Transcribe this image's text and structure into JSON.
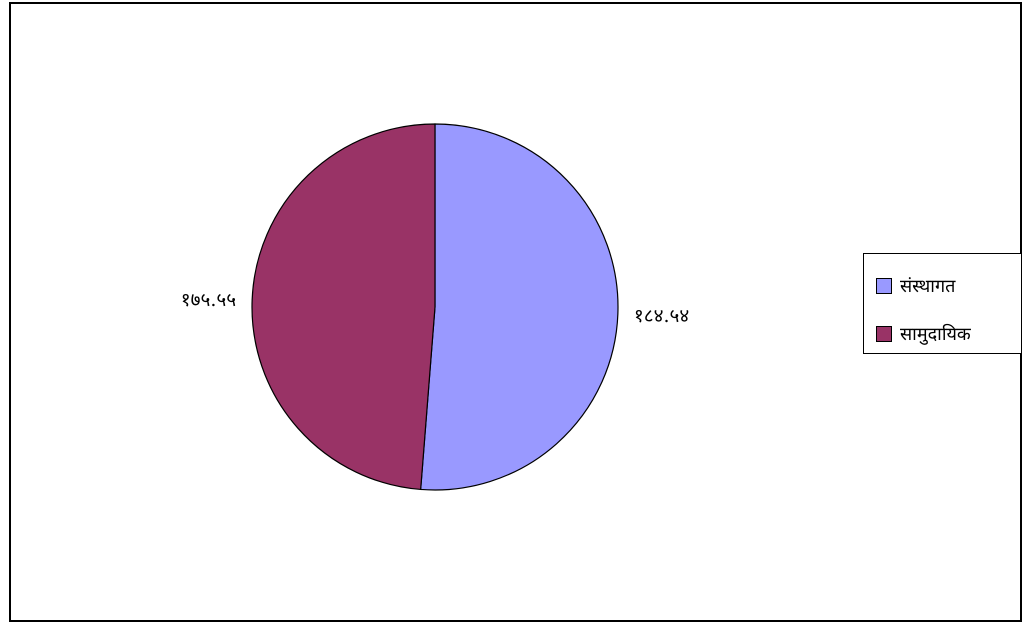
{
  "chart_data": {
    "type": "pie",
    "title": "",
    "slices": [
      {
        "name": "संस्थागत",
        "value": 184.54,
        "value_label": "१८४.५४",
        "color": "#9999ff"
      },
      {
        "name": "सामुदायिक",
        "value": 175.55,
        "value_label": "१७५.५५",
        "color": "#993366"
      }
    ],
    "legend_position": "right",
    "start_angle_deg": 0,
    "direction": "clockwise"
  },
  "legend": {
    "items": [
      {
        "label": "संस्थागत",
        "color": "#9999ff"
      },
      {
        "label": "सामुदायिक",
        "color": "#993366"
      }
    ]
  }
}
